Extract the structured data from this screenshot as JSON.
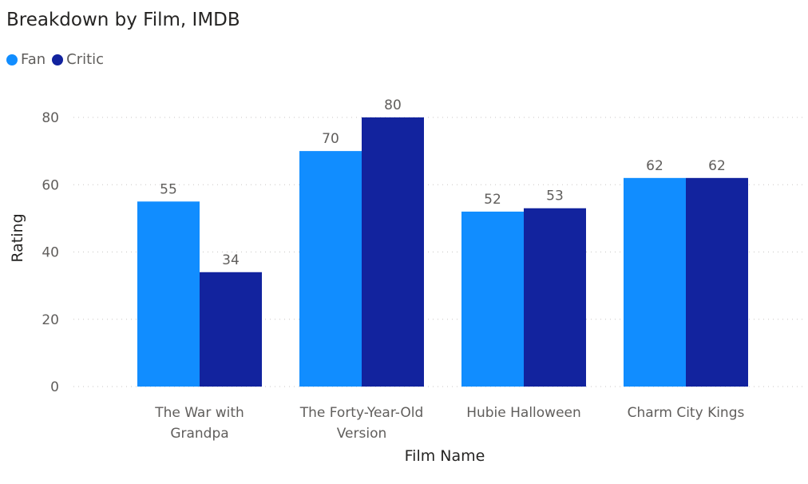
{
  "chart_data": {
    "type": "bar",
    "title": "Breakdown by Film, IMDB",
    "xlabel": "Film Name",
    "ylabel": "Rating",
    "categories": [
      [
        "The War with",
        "Grandpa"
      ],
      [
        "The Forty-Year-Old",
        "Version"
      ],
      [
        "Hubie Halloween"
      ],
      [
        "Charm City Kings"
      ]
    ],
    "series": [
      {
        "name": "Fan",
        "values": [
          55,
          70,
          52,
          62
        ],
        "color": "#118dff"
      },
      {
        "name": "Critic",
        "values": [
          34,
          80,
          53,
          62
        ],
        "color": "#12239e"
      }
    ],
    "ylim": [
      0,
      80
    ],
    "yticks": [
      "0",
      "20",
      "40",
      "60",
      "80"
    ],
    "grid": true,
    "legend_position": "top-left"
  }
}
